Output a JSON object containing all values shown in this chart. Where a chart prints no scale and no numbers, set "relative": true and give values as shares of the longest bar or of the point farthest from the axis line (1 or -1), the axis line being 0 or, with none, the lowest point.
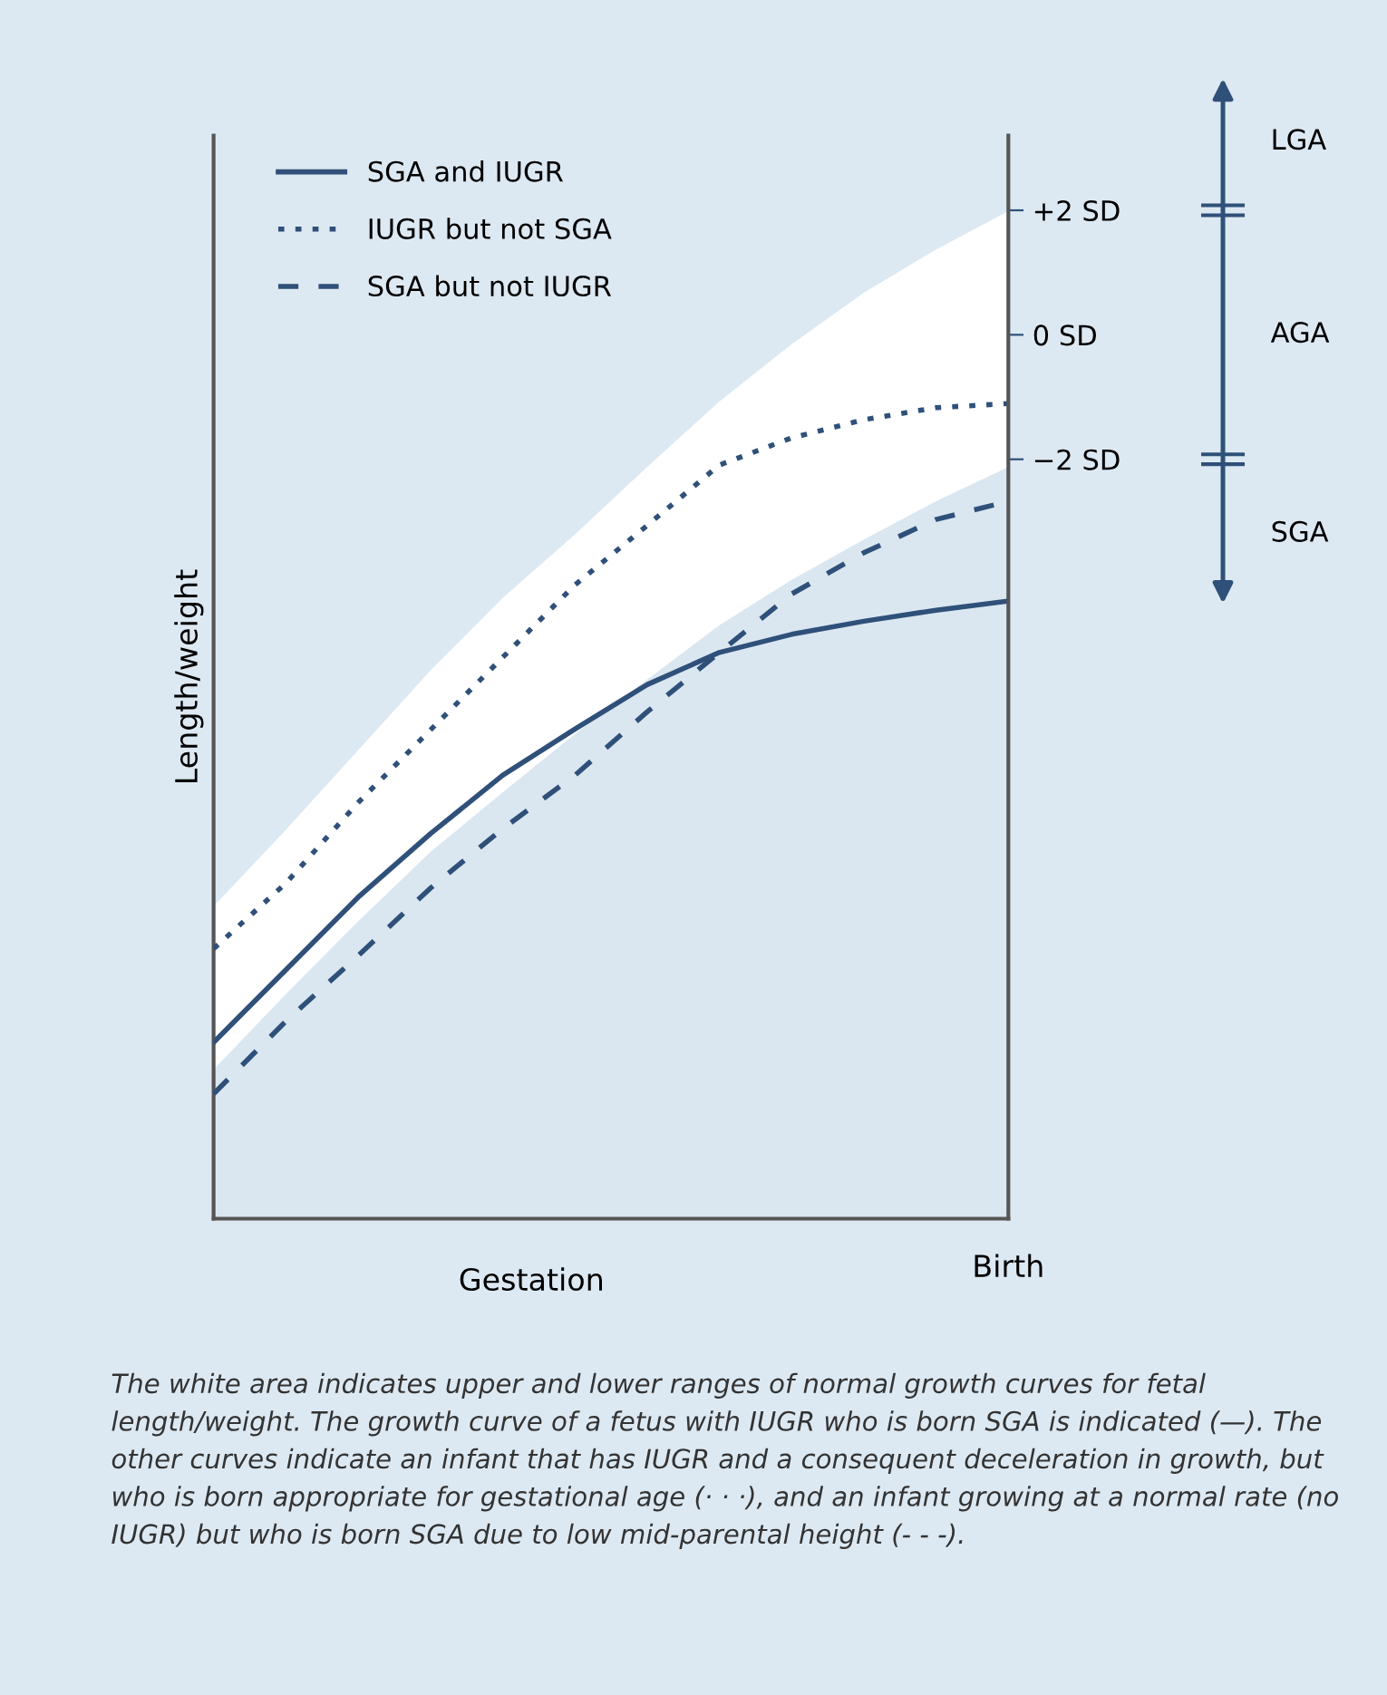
{
  "chart_data": {
    "type": "line",
    "relative": true,
    "categories": [
      null,
      null,
      null,
      null,
      null,
      null,
      null,
      null,
      null,
      null,
      null,
      "Birth"
    ],
    "xlabel": "Gestation",
    "ylabel": "Length/weight",
    "series": [
      {
        "type": "area",
        "color": "#ffffff",
        "values": [
          0.31,
          0.386,
          0.465,
          0.544,
          0.616,
          0.679,
          0.746,
          0.811,
          0.868,
          0.919,
          0.962,
          1.0
        ]
      },
      {
        "type": "area",
        "color": "#dae7f1",
        "values": [
          0.148,
          0.223,
          0.295,
          0.364,
          0.423,
          0.481,
          0.535,
          0.589,
          0.634,
          0.674,
          0.712,
          0.746
        ]
      },
      {
        "name": "SGA and IUGR",
        "color": "#2f5079",
        "line_style": "solid",
        "values": [
          0.175,
          0.247,
          0.319,
          0.382,
          0.44,
          0.486,
          0.53,
          0.562,
          0.58,
          0.593,
          0.604,
          0.613
        ]
      },
      {
        "name": "IUGR but not SGA",
        "color": "#2f5079",
        "line_style": "dotted",
        "values": [
          0.268,
          0.333,
          0.413,
          0.485,
          0.557,
          0.629,
          0.688,
          0.748,
          0.775,
          0.793,
          0.805,
          0.809
        ]
      },
      {
        "name": "SGA but not IUGR",
        "color": "#2f5079",
        "line_style": "dashed",
        "values": [
          0.124,
          0.196,
          0.261,
          0.328,
          0.387,
          0.44,
          0.503,
          0.562,
          0.62,
          0.661,
          0.694,
          0.712
        ]
      }
    ],
    "y2lim": [
      -14.2,
      3.2
    ],
    "y2ticks": [
      {
        "value": 2,
        "label": "+2 SD"
      },
      {
        "value": 0,
        "label": "0 SD"
      },
      {
        "value": -2,
        "label": "−2 SD"
      }
    ],
    "legend": "top left",
    "annotations": [
      "LGA",
      "AGA",
      "SGA",
      "The white area indicates upper and lower ranges of normal growth curves for fetal length/weight. The growth curve of a fetus with IUGR who is born SGA is indicated (—). The other curves indicate an infant that has IUGR and a consequent deceleration in growth, but who is born appropriate for gestational age (· · ·), and an infant growing at a normal rate (no IUGR) but who is born SGA due to low mid-parental height (- - -)."
    ]
  }
}
